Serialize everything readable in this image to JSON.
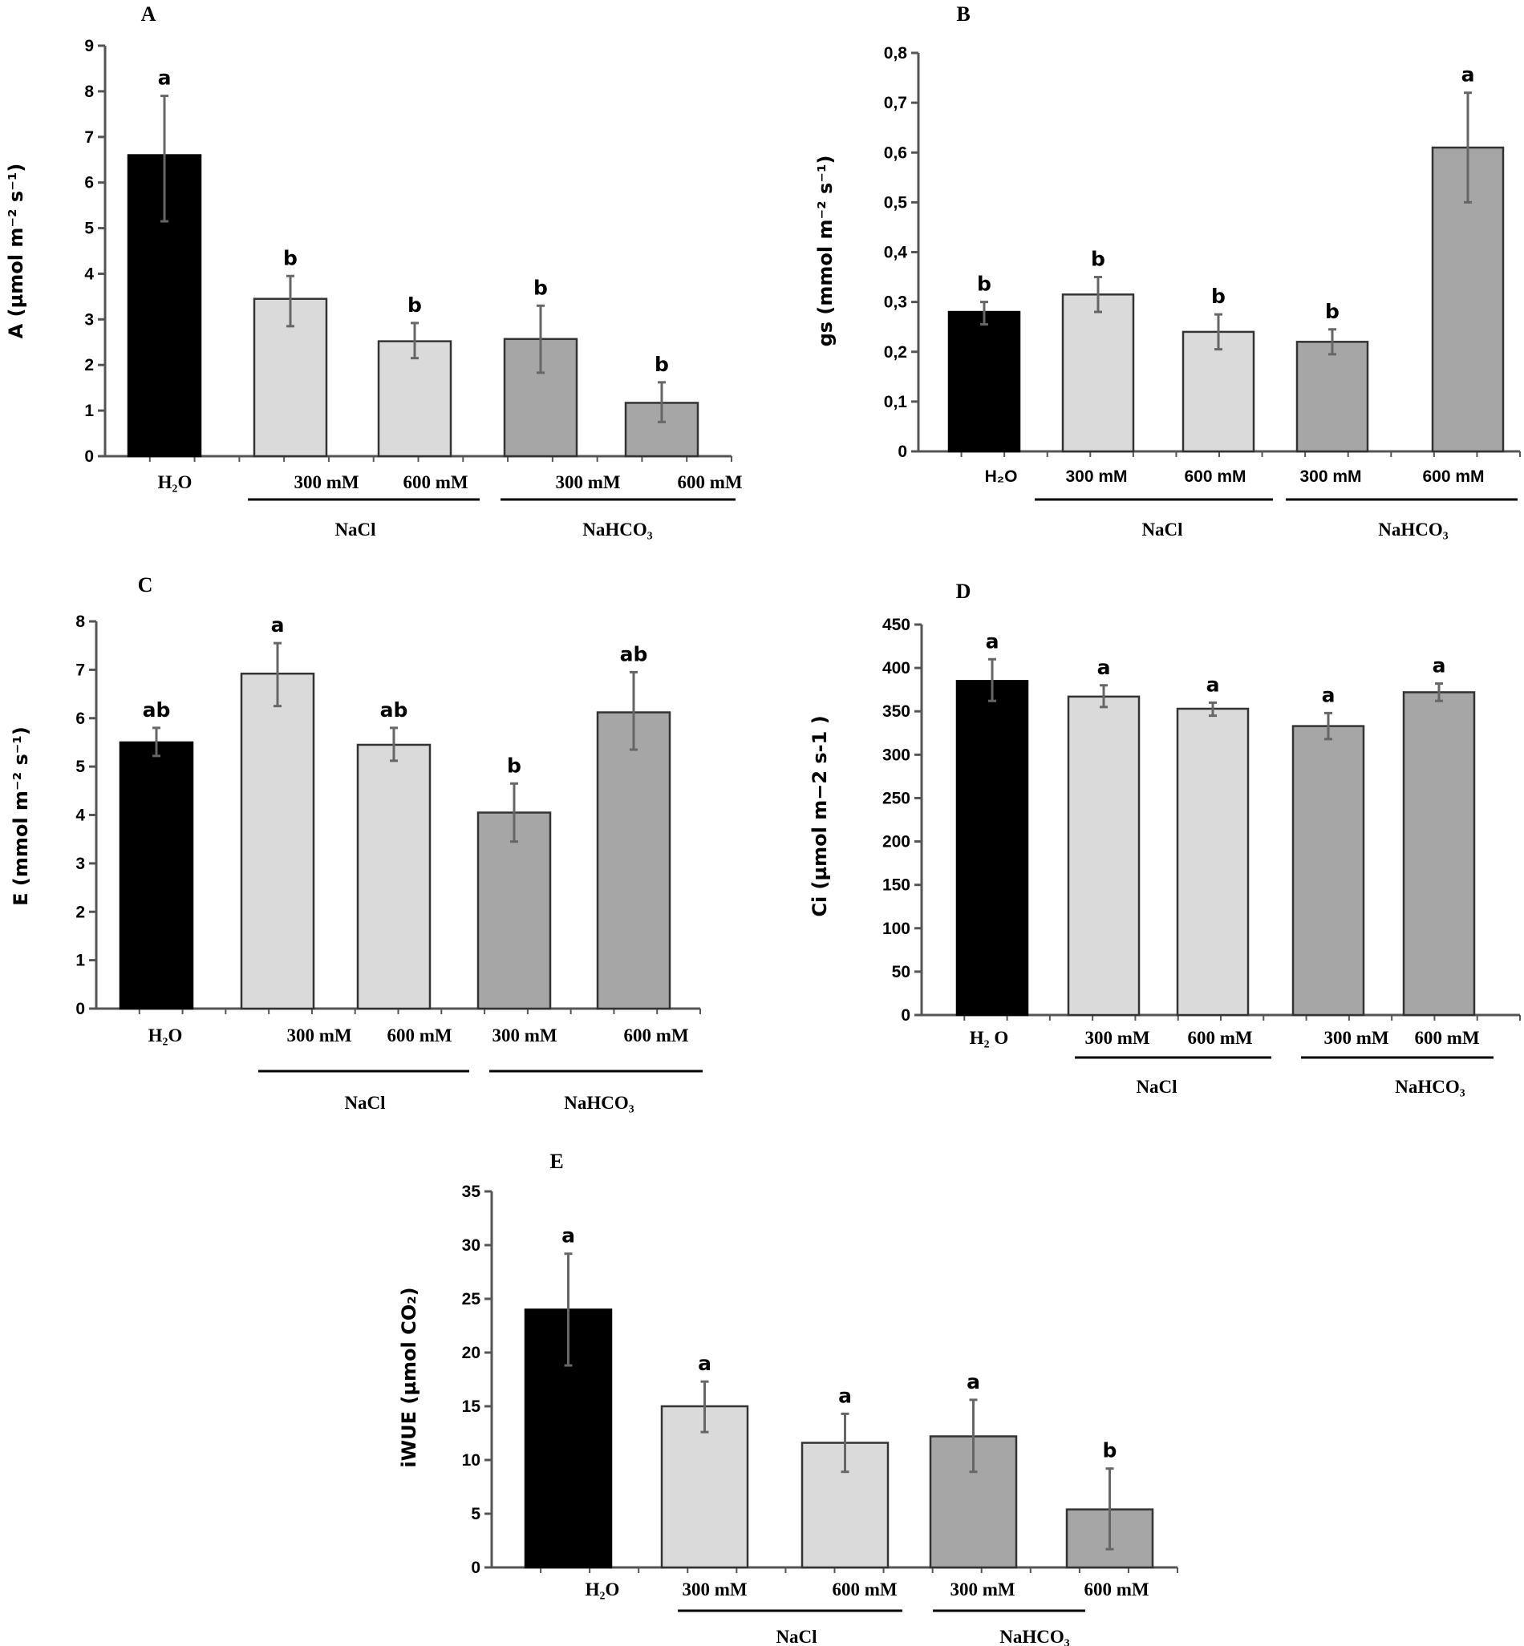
{
  "chart_data": [
    {
      "panel": "A",
      "type": "bar",
      "ylabel": "A (µmol m⁻² s⁻¹)",
      "ylim": [
        0,
        9
      ],
      "yticks": [
        "0",
        "1",
        "2",
        "3",
        "4",
        "5",
        "6",
        "7",
        "8",
        "9"
      ],
      "bars": [
        {
          "label": "H₂O",
          "value": 6.6,
          "err": [
            5.15,
            7.9
          ],
          "sig": "a",
          "color": "#000000"
        },
        {
          "label": "300 mM",
          "value": 3.45,
          "err": [
            2.85,
            3.95
          ],
          "sig": "b",
          "color": "#dadada"
        },
        {
          "label": "600 mM",
          "value": 2.52,
          "err": [
            2.15,
            2.92
          ],
          "sig": "b",
          "color": "#dadada"
        },
        {
          "label": "300 mM",
          "value": 2.57,
          "err": [
            1.83,
            3.3
          ],
          "sig": "b",
          "color": "#a6a6a6"
        },
        {
          "label": "600 mM",
          "value": 1.17,
          "err": [
            0.75,
            1.62
          ],
          "sig": "b",
          "color": "#a6a6a6"
        }
      ],
      "groups": [
        {
          "label": "NaCl"
        },
        {
          "label": "NaHCO₃"
        }
      ]
    },
    {
      "panel": "B",
      "type": "bar",
      "ylabel": "gs (mmol m⁻² s⁻¹)",
      "ylim": [
        0,
        0.8
      ],
      "yticks": [
        "0",
        "0,1",
        "0,2",
        "0,3",
        "0,4",
        "0,5",
        "0,6",
        "0,7",
        "0,8"
      ],
      "bars": [
        {
          "label": "H₂O",
          "value": 0.28,
          "err": [
            0.255,
            0.3
          ],
          "sig": "b",
          "color": "#000000"
        },
        {
          "label": "300 mM",
          "value": 0.315,
          "err": [
            0.28,
            0.35
          ],
          "sig": "b",
          "color": "#dadada"
        },
        {
          "label": "600 mM",
          "value": 0.24,
          "err": [
            0.205,
            0.275
          ],
          "sig": "b",
          "color": "#dadada"
        },
        {
          "label": "300 mM",
          "value": 0.22,
          "err": [
            0.195,
            0.245
          ],
          "sig": "b",
          "color": "#a6a6a6"
        },
        {
          "label": "600 mM",
          "value": 0.61,
          "err": [
            0.5,
            0.72
          ],
          "sig": "a",
          "color": "#a6a6a6"
        }
      ],
      "groups": [
        {
          "label": "NaCl"
        },
        {
          "label": "NaHCO₃"
        }
      ]
    },
    {
      "panel": "C",
      "type": "bar",
      "ylabel": "E (mmol m⁻² s⁻¹)",
      "ylim": [
        0,
        8
      ],
      "yticks": [
        "0",
        "1",
        "2",
        "3",
        "4",
        "5",
        "6",
        "7",
        "8"
      ],
      "bars": [
        {
          "label": "H₂O",
          "value": 5.5,
          "err": [
            5.22,
            5.8
          ],
          "sig": "ab",
          "color": "#000000"
        },
        {
          "label": "300 mM",
          "value": 6.92,
          "err": [
            6.25,
            7.55
          ],
          "sig": "a",
          "color": "#dadada"
        },
        {
          "label": "600 mM",
          "value": 5.45,
          "err": [
            5.12,
            5.8
          ],
          "sig": "ab",
          "color": "#dadada"
        },
        {
          "label": "300 mM",
          "value": 4.05,
          "err": [
            3.45,
            4.65
          ],
          "sig": "b",
          "color": "#a6a6a6"
        },
        {
          "label": "600 mM",
          "value": 6.12,
          "err": [
            5.35,
            6.95
          ],
          "sig": "ab",
          "color": "#a6a6a6"
        }
      ],
      "groups": [
        {
          "label": "NaCl"
        },
        {
          "label": "NaHCO₃"
        }
      ]
    },
    {
      "panel": "D",
      "type": "bar",
      "ylabel": "Ci (µmol m−2 s-1 )",
      "ylim": [
        0,
        450
      ],
      "yticks": [
        "0",
        "50",
        "100",
        "150",
        "200",
        "250",
        "300",
        "350",
        "400",
        "450"
      ],
      "bars": [
        {
          "label": "H₂ O",
          "value": 385,
          "err": [
            362,
            410
          ],
          "sig": "a",
          "color": "#000000"
        },
        {
          "label": "300 mM",
          "value": 367,
          "err": [
            355,
            380
          ],
          "sig": "a",
          "color": "#dadada"
        },
        {
          "label": "600 mM",
          "value": 353,
          "err": [
            345,
            360
          ],
          "sig": "a",
          "color": "#dadada"
        },
        {
          "label": "300 mM",
          "value": 333,
          "err": [
            318,
            348
          ],
          "sig": "a",
          "color": "#a6a6a6"
        },
        {
          "label": "600 mM",
          "value": 372,
          "err": [
            362,
            382
          ],
          "sig": "a",
          "color": "#a6a6a6"
        }
      ],
      "groups": [
        {
          "label": "NaCl"
        },
        {
          "label": "NaHCO₃"
        }
      ]
    },
    {
      "panel": "E",
      "type": "bar",
      "ylabel": "iWUE (µmol CO₂)",
      "ylim": [
        0,
        35
      ],
      "yticks": [
        "0",
        "5",
        "10",
        "15",
        "20",
        "25",
        "30",
        "35"
      ],
      "bars": [
        {
          "label": "H₂O",
          "value": 24,
          "err": [
            18.8,
            29.2
          ],
          "sig": "a",
          "color": "#000000"
        },
        {
          "label": "300 mM",
          "value": 15,
          "err": [
            12.6,
            17.3
          ],
          "sig": "a",
          "color": "#dadada"
        },
        {
          "label": "600 mM",
          "value": 11.6,
          "err": [
            8.9,
            14.3
          ],
          "sig": "a",
          "color": "#dadada"
        },
        {
          "label": "300 mM",
          "value": 12.2,
          "err": [
            8.9,
            15.6
          ],
          "sig": "a",
          "color": "#a6a6a6"
        },
        {
          "label": "600 mM",
          "value": 5.4,
          "err": [
            1.7,
            9.2
          ],
          "sig": "b",
          "color": "#a6a6a6"
        }
      ],
      "groups": [
        {
          "label": "NaCl"
        },
        {
          "label": "NaHCO₃"
        }
      ]
    }
  ]
}
